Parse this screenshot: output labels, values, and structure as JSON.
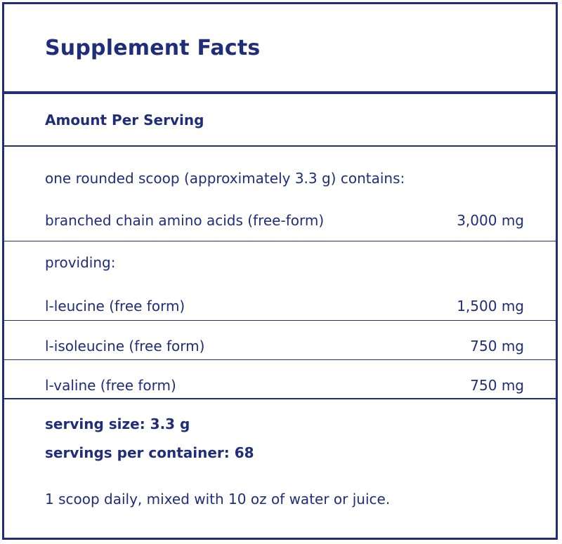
{
  "label": {
    "title": "Supplement Facts",
    "amount_per_serving": "Amount Per Serving",
    "serving_description": "one rounded scoop (approximately 3.3 g) contains:",
    "rows": [
      {
        "name": "branched chain amino acids (free-form)",
        "amount": "3,000 mg"
      }
    ],
    "providing": "providing:",
    "sub_rows": [
      {
        "name": "l-leucine (free form)",
        "amount": "1,500 mg"
      },
      {
        "name": "l-isoleucine (free form)",
        "amount": "750 mg"
      },
      {
        "name": "l-valine (free form)",
        "amount": "750 mg"
      }
    ],
    "serving_size": "serving size: 3.3 g",
    "servings_per_container": "servings per container: 68",
    "directions": "1 scoop daily, mixed with 10 oz of water or juice."
  },
  "colors": {
    "text": "#1f2d7a",
    "border": "#1f2d7a",
    "background": "#ffffff"
  }
}
